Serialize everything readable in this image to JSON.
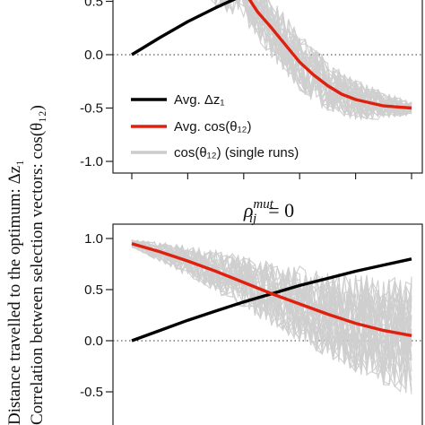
{
  "chart_data": [
    {
      "type": "line",
      "title": "",
      "ylabel_lines": [
        "Distance travelled to the optimum: Δz₁",
        "Correlation between selection vectors: cos(θ₁₂)"
      ],
      "xlim": [
        0,
        1
      ],
      "ylim": [
        -1.0,
        0.5
      ],
      "yticks": [
        "0.5",
        "0.0",
        "-0.5",
        "-1.0"
      ],
      "ytick_values": [
        0.5,
        0.0,
        -0.5,
        -1.0
      ],
      "grid": false,
      "reference_line": 0.0,
      "legend_position": "bottom-left",
      "legend": [
        {
          "label": "Avg. Δz₁",
          "color": "#000000"
        },
        {
          "label": "Avg. cos(θ₁₂)",
          "color": "#e0200f"
        },
        {
          "label": "cos(θ₁₂) (single runs)",
          "color": "#cccccc"
        }
      ],
      "series": [
        {
          "name": "Avg. Δz₁",
          "color": "#000000",
          "x": [
            0,
            0.1,
            0.2,
            0.3,
            0.4
          ],
          "y": [
            0.0,
            0.16,
            0.31,
            0.44,
            0.56
          ]
        },
        {
          "name": "Avg. cos(θ₁₂)",
          "color": "#e0200f",
          "x": [
            0.4,
            0.45,
            0.5,
            0.55,
            0.6,
            0.65,
            0.7,
            0.75,
            0.8,
            0.85,
            0.9,
            0.95,
            1.0
          ],
          "y": [
            0.6,
            0.4,
            0.25,
            0.09,
            -0.07,
            -0.19,
            -0.29,
            -0.37,
            -0.42,
            -0.45,
            -0.48,
            -0.49,
            -0.5
          ]
        }
      ]
    },
    {
      "type": "line",
      "title": "ρᵢⱼᵐᵘᵗ = 0",
      "title_parts": {
        "base": "ρ",
        "sup": "mut",
        "sub": "ij",
        "rhs": "= 0"
      },
      "xlim": [
        0,
        1
      ],
      "ylim": [
        -0.75,
        1.05
      ],
      "yticks": [
        "1.0",
        "0.5",
        "0.0",
        "-0.5"
      ],
      "ytick_values": [
        1.0,
        0.5,
        0.0,
        -0.5
      ],
      "grid": false,
      "reference_line": 0.0,
      "series": [
        {
          "name": "Avg. Δz₁",
          "color": "#000000",
          "x": [
            0,
            0.1,
            0.2,
            0.3,
            0.4,
            0.5,
            0.6,
            0.7,
            0.8,
            0.9,
            1.0
          ],
          "y": [
            0.0,
            0.1,
            0.2,
            0.29,
            0.38,
            0.46,
            0.54,
            0.61,
            0.68,
            0.74,
            0.8
          ]
        },
        {
          "name": "Avg. cos(θ₁₂)",
          "color": "#e0200f",
          "x": [
            0,
            0.1,
            0.2,
            0.3,
            0.4,
            0.5,
            0.6,
            0.7,
            0.8,
            0.9,
            1.0
          ],
          "y": [
            0.95,
            0.87,
            0.78,
            0.68,
            0.57,
            0.46,
            0.36,
            0.26,
            0.17,
            0.1,
            0.05
          ]
        }
      ]
    }
  ]
}
